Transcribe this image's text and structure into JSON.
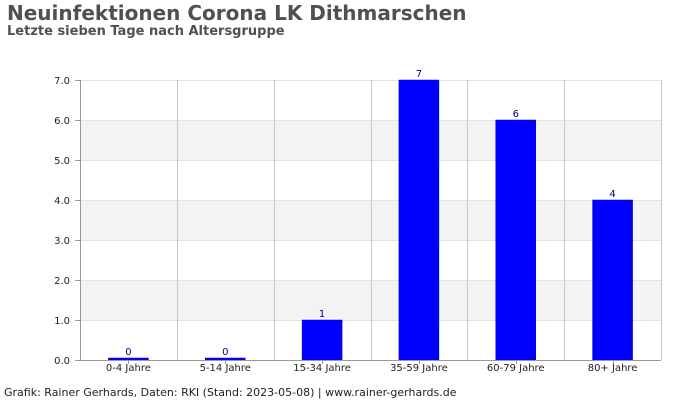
{
  "title": "Neuinfektionen Corona LK Dithmarschen",
  "subtitle": "Letzte sieben Tage nach Altersgruppe",
  "footer": "Grafik: Rainer Gerhards, Daten: RKI (Stand: 2023-05-08) | www.rainer-gerhards.de",
  "colors": {
    "bar": "#0000ff",
    "label": "#000080",
    "band": "#f3f3f3",
    "grid": "#c8c8c8"
  },
  "chart_data": {
    "type": "bar",
    "categories": [
      "0-4 Jahre",
      "5-14 Jahre",
      "15-34 Jahre",
      "35-59 Jahre",
      "60-79 Jahre",
      "80+ Jahre"
    ],
    "values": [
      0,
      0,
      1,
      7,
      6,
      4
    ],
    "data_labels": [
      "0",
      "0",
      "1",
      "7",
      "6",
      "4"
    ],
    "ylim": [
      0,
      7
    ],
    "yticks": [
      "0.0",
      "1.0",
      "2.0",
      "3.0",
      "4.0",
      "5.0",
      "6.0",
      "7.0"
    ],
    "grid": true,
    "legend": "none"
  }
}
